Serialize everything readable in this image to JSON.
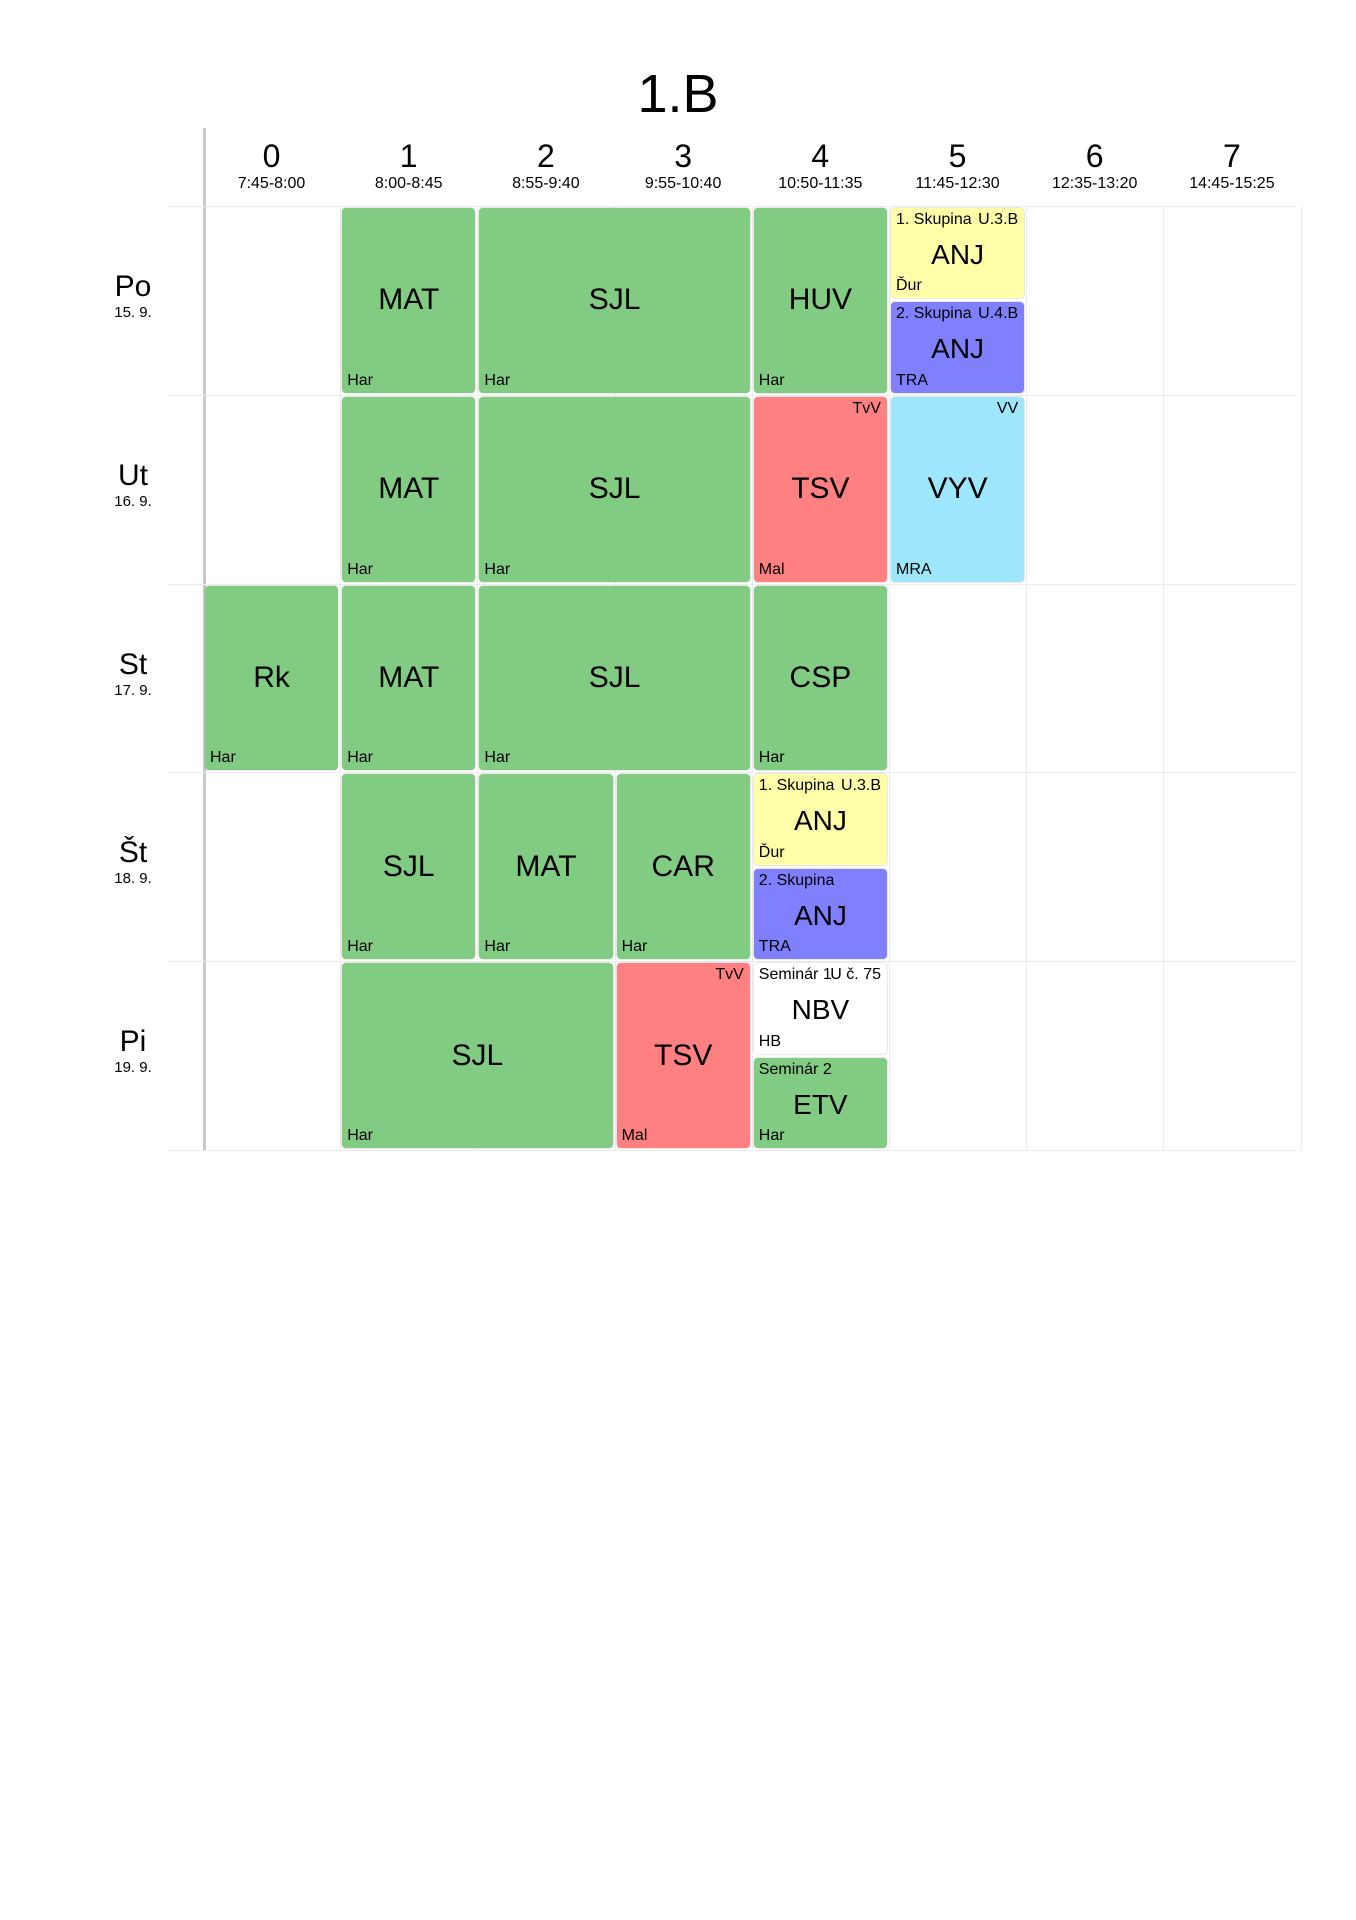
{
  "title": "1.B",
  "periods": [
    {
      "num": "0",
      "time": "7:45-8:00"
    },
    {
      "num": "1",
      "time": "8:00-8:45"
    },
    {
      "num": "2",
      "time": "8:55-9:40"
    },
    {
      "num": "3",
      "time": "9:55-10:40"
    },
    {
      "num": "4",
      "time": "10:50-11:35"
    },
    {
      "num": "5",
      "time": "11:45-12:30"
    },
    {
      "num": "6",
      "time": "12:35-13:20"
    },
    {
      "num": "7",
      "time": "14:45-15:25"
    }
  ],
  "days": [
    {
      "name": "Po",
      "date": "15. 9."
    },
    {
      "name": "Ut",
      "date": "16. 9."
    },
    {
      "name": "St",
      "date": "17. 9."
    },
    {
      "name": "Št",
      "date": "18. 9."
    },
    {
      "name": "Pi",
      "date": "19. 9."
    }
  ],
  "colors": {
    "green": "#82cb82",
    "red": "#ff8080",
    "yellow": "#ffffaa",
    "purple": "#8080ff",
    "cyan": "#9ee6fb",
    "white": "#ffffff"
  },
  "lessons": [
    {
      "day": 0,
      "period": 1,
      "span": 1,
      "part": "full",
      "color": "green",
      "subject": "MAT",
      "teacher": "Har",
      "group": "",
      "room": ""
    },
    {
      "day": 0,
      "period": 2,
      "span": 2,
      "part": "full",
      "color": "green",
      "subject": "SJL",
      "teacher": "Har",
      "group": "",
      "room": ""
    },
    {
      "day": 0,
      "period": 4,
      "span": 1,
      "part": "full",
      "color": "green",
      "subject": "HUV",
      "teacher": "Har",
      "group": "",
      "room": ""
    },
    {
      "day": 0,
      "period": 5,
      "span": 1,
      "part": "top",
      "color": "yellow",
      "subject": "ANJ",
      "teacher": "Ďur",
      "group": "1. Skupina",
      "room": "U.3.B"
    },
    {
      "day": 0,
      "period": 5,
      "span": 1,
      "part": "bottom",
      "color": "purple",
      "subject": "ANJ",
      "teacher": "TRA",
      "group": "2. Skupina",
      "room": "U.4.B"
    },
    {
      "day": 1,
      "period": 1,
      "span": 1,
      "part": "full",
      "color": "green",
      "subject": "MAT",
      "teacher": "Har",
      "group": "",
      "room": ""
    },
    {
      "day": 1,
      "period": 2,
      "span": 2,
      "part": "full",
      "color": "green",
      "subject": "SJL",
      "teacher": "Har",
      "group": "",
      "room": ""
    },
    {
      "day": 1,
      "period": 4,
      "span": 1,
      "part": "full",
      "color": "red",
      "subject": "TSV",
      "teacher": "Mal",
      "group": "",
      "room": "TvV"
    },
    {
      "day": 1,
      "period": 5,
      "span": 1,
      "part": "full",
      "color": "cyan",
      "subject": "VYV",
      "teacher": "MRA",
      "group": "",
      "room": "VV"
    },
    {
      "day": 2,
      "period": 0,
      "span": 1,
      "part": "full",
      "color": "green",
      "subject": "Rk",
      "teacher": "Har",
      "group": "",
      "room": ""
    },
    {
      "day": 2,
      "period": 1,
      "span": 1,
      "part": "full",
      "color": "green",
      "subject": "MAT",
      "teacher": "Har",
      "group": "",
      "room": ""
    },
    {
      "day": 2,
      "period": 2,
      "span": 2,
      "part": "full",
      "color": "green",
      "subject": "SJL",
      "teacher": "Har",
      "group": "",
      "room": ""
    },
    {
      "day": 2,
      "period": 4,
      "span": 1,
      "part": "full",
      "color": "green",
      "subject": "CSP",
      "teacher": "Har",
      "group": "",
      "room": ""
    },
    {
      "day": 3,
      "period": 1,
      "span": 1,
      "part": "full",
      "color": "green",
      "subject": "SJL",
      "teacher": "Har",
      "group": "",
      "room": ""
    },
    {
      "day": 3,
      "period": 2,
      "span": 1,
      "part": "full",
      "color": "green",
      "subject": "MAT",
      "teacher": "Har",
      "group": "",
      "room": ""
    },
    {
      "day": 3,
      "period": 3,
      "span": 1,
      "part": "full",
      "color": "green",
      "subject": "CAR",
      "teacher": "Har",
      "group": "",
      "room": ""
    },
    {
      "day": 3,
      "period": 4,
      "span": 1,
      "part": "top",
      "color": "yellow",
      "subject": "ANJ",
      "teacher": "Ďur",
      "group": "1. Skupina",
      "room": "U.3.B"
    },
    {
      "day": 3,
      "period": 4,
      "span": 1,
      "part": "bottom",
      "color": "purple",
      "subject": "ANJ",
      "teacher": "TRA",
      "group": "2. Skupina",
      "room": ""
    },
    {
      "day": 4,
      "period": 1,
      "span": 2,
      "part": "full",
      "color": "green",
      "subject": "SJL",
      "teacher": "Har",
      "group": "",
      "room": ""
    },
    {
      "day": 4,
      "period": 3,
      "span": 1,
      "part": "full",
      "color": "red",
      "subject": "TSV",
      "teacher": "Mal",
      "group": "",
      "room": "TvV"
    },
    {
      "day": 4,
      "period": 4,
      "span": 1,
      "part": "top",
      "color": "white",
      "subject": "NBV",
      "teacher": "HB",
      "group": "Seminár 1",
      "room": "U č. 75"
    },
    {
      "day": 4,
      "period": 4,
      "span": 1,
      "part": "bottom",
      "color": "green",
      "subject": "ETV",
      "teacher": "Har",
      "group": "Seminár 2",
      "room": ""
    }
  ]
}
